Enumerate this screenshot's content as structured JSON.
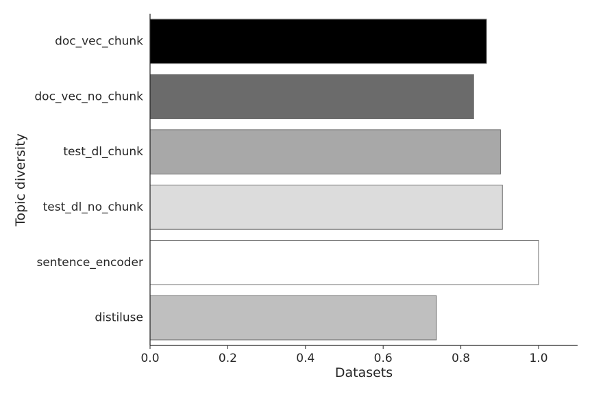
{
  "chart_data": {
    "type": "bar",
    "orientation": "horizontal",
    "categories": [
      "doc_vec_chunk",
      "doc_vec_no_chunk",
      "test_dl_chunk",
      "test_dl_no_chunk",
      "sentence_encoder",
      "distiluse"
    ],
    "values": [
      0.866,
      0.833,
      0.902,
      0.907,
      1.0,
      0.737
    ],
    "colors": [
      "#000000",
      "#6b6b6b",
      "#a8a8a8",
      "#dcdcdc",
      "#ffffff",
      "#bfbfbf"
    ],
    "xlabel": "Datasets",
    "ylabel": "Topic diversity",
    "xlim": [
      0,
      1.1
    ],
    "xticks": [
      "0.0",
      "0.2",
      "0.4",
      "0.6",
      "0.8",
      "1.0"
    ],
    "grid": false,
    "legend": "none"
  }
}
